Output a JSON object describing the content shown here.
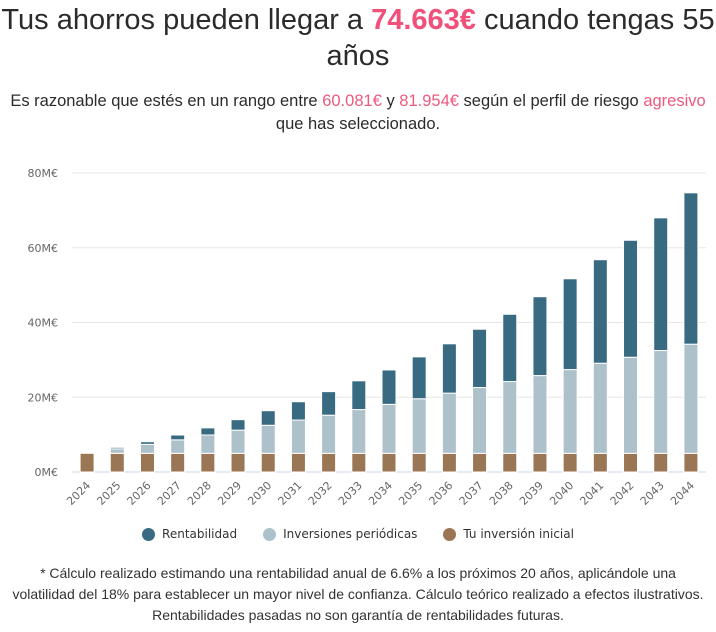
{
  "header": {
    "title_pre": "Tus ahorros pueden llegar a ",
    "title_amount": "74.663€",
    "title_post": " cuando tengas 55 años"
  },
  "subtitle": {
    "pre": "Es razonable que estés en un rango entre ",
    "low": "60.081€",
    "mid": " y ",
    "high": "81.954€",
    "post1": " según el perfil de riesgo ",
    "profile": "agresivo",
    "post2": " que has seleccionado."
  },
  "colors": {
    "accent": "#f0507a",
    "rentabilidad": "#386b82",
    "periodicas": "#adc1cb",
    "inicial": "#9a7655"
  },
  "chart_data": {
    "type": "bar",
    "stacked": true,
    "title": "",
    "xlabel": "",
    "ylabel": "",
    "ylim": [
      0,
      80
    ],
    "yticks": [
      0,
      20,
      40,
      60,
      80
    ],
    "ytick_labels": [
      "0M€",
      "20M€",
      "40M€",
      "60M€",
      "80M€"
    ],
    "grid": true,
    "legend_position": "bottom",
    "categories": [
      "2024",
      "2025",
      "2026",
      "2027",
      "2028",
      "2029",
      "2030",
      "2031",
      "2032",
      "2033",
      "2034",
      "2035",
      "2036",
      "2037",
      "2038",
      "2039",
      "2040",
      "2041",
      "2042",
      "2043",
      "2044"
    ],
    "series": [
      {
        "name": "Tu inversión inicial",
        "color": "#9a7655",
        "values": [
          5,
          5,
          5,
          5,
          5,
          5,
          5,
          5,
          5,
          5,
          5,
          5,
          5,
          5,
          5,
          5,
          5,
          5,
          5,
          5,
          5
        ]
      },
      {
        "name": "Inversiones periódicas",
        "color": "#adc1cb",
        "values": [
          0,
          1.2,
          2.4,
          3.6,
          4.9,
          6.2,
          7.5,
          8.9,
          10.2,
          11.7,
          13.1,
          14.6,
          16.1,
          17.6,
          19.2,
          20.8,
          22.4,
          24.1,
          25.7,
          27.5,
          29.2
        ]
      },
      {
        "name": "Rentabilidad",
        "color": "#386b82",
        "values": [
          0,
          0.4,
          0.7,
          1.3,
          1.9,
          2.8,
          3.9,
          4.9,
          6.3,
          7.7,
          9.2,
          11.2,
          13.2,
          15.6,
          18.0,
          21.1,
          24.3,
          27.7,
          31.3,
          35.5,
          40.5
        ]
      }
    ]
  },
  "legend": [
    {
      "label": "Rentabilidad",
      "color": "#386b82"
    },
    {
      "label": "Inversiones periódicas",
      "color": "#adc1cb"
    },
    {
      "label": "Tu inversión inicial",
      "color": "#9a7655"
    }
  ],
  "footnote": "* Cálculo realizado estimando una rentabilidad anual de 6.6% a los próximos 20 años, aplicándole una volatilidad del 18% para establecer un mayor nivel de confianza. Cálculo teórico realizado a efectos ilustrativos. Rentabilidades pasadas no son garantía de rentabilidades futuras."
}
